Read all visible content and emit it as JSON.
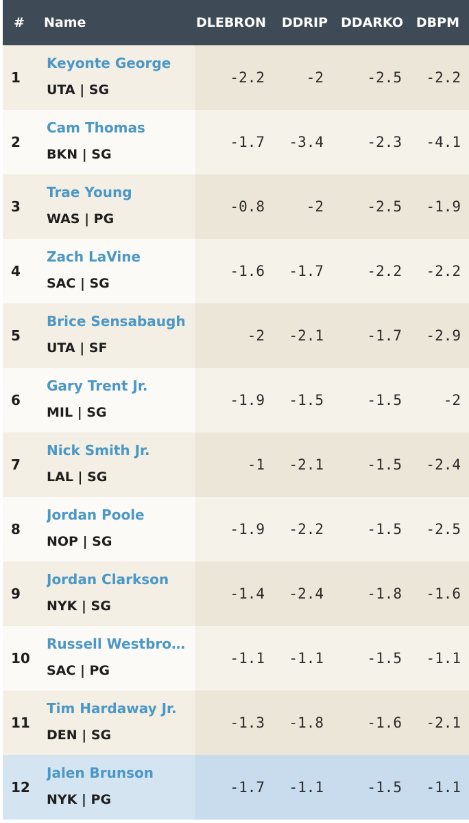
{
  "columns": {
    "rank": "#",
    "name": "Name",
    "lebron": "DLEBRON",
    "ddrip": "DDRIP",
    "ddarko": "DDARKO",
    "dbpm": "DBPM"
  },
  "colors": {
    "header_bg": "#3e4a55",
    "row_odd": "#f3efe5",
    "row_even": "#fbfaf6",
    "row_highlight": "#d4e5f1",
    "link": "#4b97c5"
  },
  "rows": [
    {
      "rank": "1",
      "name": "Keyonte George",
      "team": "UTA | SG",
      "lebron": "-2.2",
      "ddrip": "-2",
      "ddarko": "-2.5",
      "dbpm": "-2.2"
    },
    {
      "rank": "2",
      "name": "Cam Thomas",
      "team": "BKN | SG",
      "lebron": "-1.7",
      "ddrip": "-3.4",
      "ddarko": "-2.3",
      "dbpm": "-4.1"
    },
    {
      "rank": "3",
      "name": "Trae Young",
      "team": "WAS | PG",
      "lebron": "-0.8",
      "ddrip": "-2",
      "ddarko": "-2.5",
      "dbpm": "-1.9"
    },
    {
      "rank": "4",
      "name": "Zach LaVine",
      "team": "SAC | SG",
      "lebron": "-1.6",
      "ddrip": "-1.7",
      "ddarko": "-2.2",
      "dbpm": "-2.2"
    },
    {
      "rank": "5",
      "name": "Brice Sensabaugh",
      "team": "UTA | SF",
      "lebron": "-2",
      "ddrip": "-2.1",
      "ddarko": "-1.7",
      "dbpm": "-2.9"
    },
    {
      "rank": "6",
      "name": "Gary Trent Jr.",
      "team": "MIL | SG",
      "lebron": "-1.9",
      "ddrip": "-1.5",
      "ddarko": "-1.5",
      "dbpm": "-2"
    },
    {
      "rank": "7",
      "name": "Nick Smith Jr.",
      "team": "LAL | SG",
      "lebron": "-1",
      "ddrip": "-2.1",
      "ddarko": "-1.5",
      "dbpm": "-2.4"
    },
    {
      "rank": "8",
      "name": "Jordan Poole",
      "team": "NOP | SG",
      "lebron": "-1.9",
      "ddrip": "-2.2",
      "ddarko": "-1.5",
      "dbpm": "-2.5"
    },
    {
      "rank": "9",
      "name": "Jordan Clarkson",
      "team": "NYK | SG",
      "lebron": "-1.4",
      "ddrip": "-2.4",
      "ddarko": "-1.8",
      "dbpm": "-1.6"
    },
    {
      "rank": "10",
      "name": "Russell Westbrook",
      "team": "SAC | PG",
      "lebron": "-1.1",
      "ddrip": "-1.1",
      "ddarko": "-1.5",
      "dbpm": "-1.1"
    },
    {
      "rank": "11",
      "name": "Tim Hardaway Jr.",
      "team": "DEN | SG",
      "lebron": "-1.3",
      "ddrip": "-1.8",
      "ddarko": "-1.6",
      "dbpm": "-2.1"
    },
    {
      "rank": "12",
      "name": "Jalen Brunson",
      "team": "NYK | PG",
      "lebron": "-1.7",
      "ddrip": "-1.1",
      "ddarko": "-1.5",
      "dbpm": "-1.1"
    }
  ]
}
